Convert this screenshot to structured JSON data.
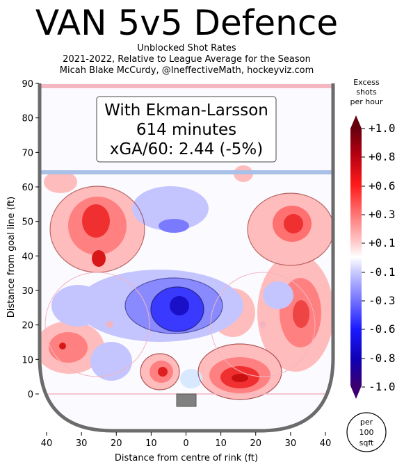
{
  "chart_data": {
    "type": "heatmap",
    "title": "VAN 5v5 Defence",
    "subtitle_lines": [
      "Unblocked Shot Rates",
      "2021-2022, Relative to League Average for the Season",
      "Micah Blake McCurdy, @IneffectiveMath, hockeyviz.com"
    ],
    "annotation_lines": [
      "With Ekman-Larsson",
      "614 minutes",
      "xGA/60: 2.44 (-5%)"
    ],
    "xlabel": "Distance from centre of rink (ft)",
    "ylabel": "Distance from goal line (ft)",
    "xlim": [
      42.5,
      -42.5
    ],
    "ylim": [
      -11,
      90
    ],
    "x_ticks": [
      "40",
      "30",
      "20",
      "10",
      "0",
      "10",
      "20",
      "30",
      "40"
    ],
    "y_ticks": [
      "90",
      "80",
      "70",
      "60",
      "50",
      "40",
      "30",
      "20",
      "10",
      "0"
    ],
    "colorbar": {
      "title_lines": [
        "Excess",
        "shots",
        "per hour"
      ],
      "tick_labels": [
        "+1.0",
        "+0.8",
        "+0.6",
        "+0.3",
        "+0.1",
        "-0.1",
        "-0.3",
        "-0.6",
        "-0.8",
        "-1.0"
      ],
      "range": [
        -1.0,
        1.0
      ]
    },
    "unit_lines": [
      "per",
      "100",
      "sqft"
    ],
    "colors": {
      "positive": "#e8000d",
      "negative": "#1a1aff",
      "board": "#6b6b6b",
      "blueline": "#a9c1e6",
      "redline": "#f2b5bf"
    }
  }
}
